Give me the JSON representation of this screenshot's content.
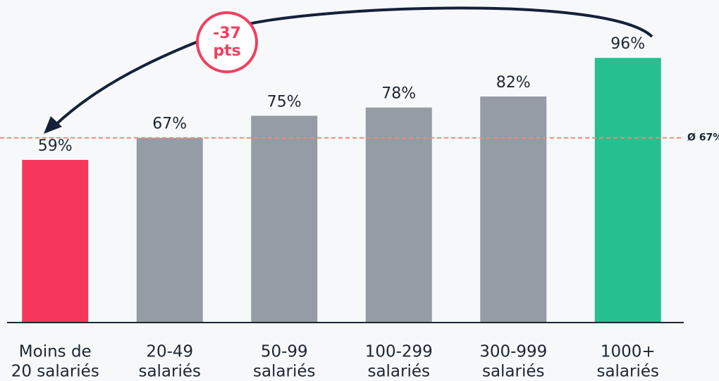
{
  "chart_data": {
    "type": "bar",
    "categories": [
      [
        "Moins de",
        "20 salariés"
      ],
      [
        "20-49",
        "salariés"
      ],
      [
        "50-99",
        "salariés"
      ],
      [
        "100-299",
        "salariés"
      ],
      [
        "300-999",
        "salariés"
      ],
      [
        "1000+",
        "salariés"
      ]
    ],
    "values": [
      59,
      67,
      75,
      78,
      82,
      96
    ],
    "value_labels": [
      "59%",
      "67%",
      "75%",
      "78%",
      "82%",
      "96%"
    ],
    "colors": [
      "#f7365c",
      "#959ca5",
      "#959ca5",
      "#959ca5",
      "#959ca5",
      "#26c08f"
    ],
    "ylim": [
      0,
      117
    ],
    "reference_line": {
      "value": 67,
      "label": "Ø 67%",
      "color": "#f08a78"
    },
    "annotation": [
      "-37",
      "pts"
    ]
  }
}
